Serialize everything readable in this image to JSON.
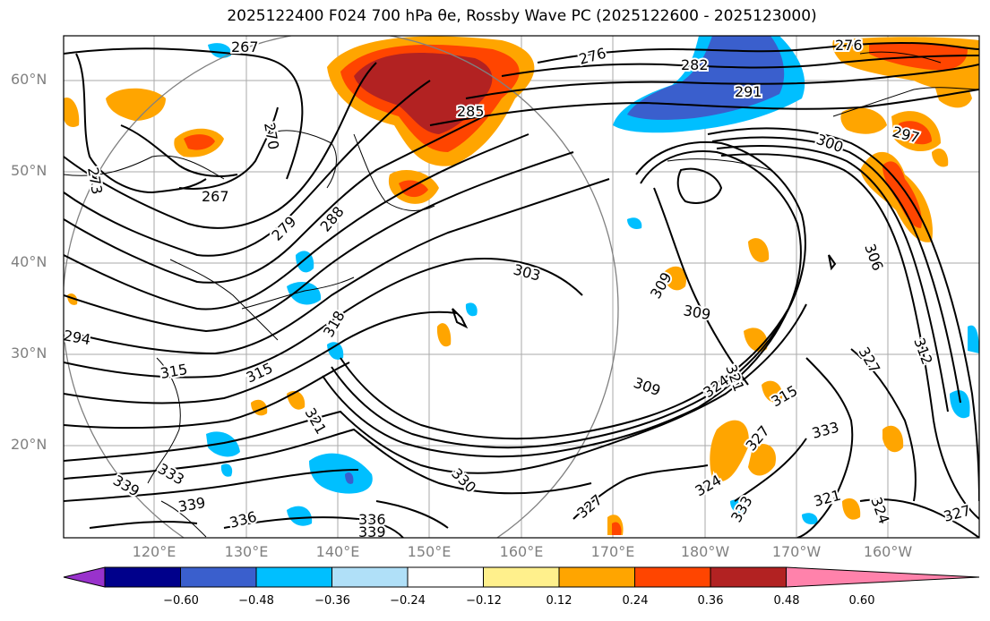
{
  "title": "2025122400 F024 700 hPa θe, Rossby Wave PC (2025122600 - 2025123000)",
  "lat_ticks": [
    "60°N",
    "50°N",
    "40°N",
    "30°N",
    "20°N"
  ],
  "lon_ticks": [
    "120°E",
    "130°E",
    "140°E",
    "150°E",
    "160°E",
    "170°E",
    "180°W",
    "170°W",
    "160°W"
  ],
  "colorbar": {
    "ticks": [
      "−0.60",
      "−0.48",
      "−0.36",
      "−0.24",
      "−0.12",
      "0.12",
      "0.24",
      "0.36",
      "0.48",
      "0.60"
    ],
    "colors": [
      "#9932cc",
      "#00008b",
      "#3a5fcd",
      "#00bfff",
      "#b0e0f8",
      "#ffffff",
      "#fff08c",
      "#ffa500",
      "#ff4500",
      "#b22222",
      "#ff82ab"
    ]
  },
  "contour_labels": [
    {
      "text": "267"
    },
    {
      "text": "276"
    },
    {
      "text": "282"
    },
    {
      "text": "276"
    },
    {
      "text": "291"
    },
    {
      "text": "285"
    },
    {
      "text": "270"
    },
    {
      "text": "300"
    },
    {
      "text": "297"
    },
    {
      "text": "273"
    },
    {
      "text": "267"
    },
    {
      "text": "279"
    },
    {
      "text": "288"
    },
    {
      "text": "303"
    },
    {
      "text": "306"
    },
    {
      "text": "309"
    },
    {
      "text": "309"
    },
    {
      "text": "294"
    },
    {
      "text": "315"
    },
    {
      "text": "315"
    },
    {
      "text": "318"
    },
    {
      "text": "312"
    },
    {
      "text": "327"
    },
    {
      "text": "309"
    },
    {
      "text": "324"
    },
    {
      "text": "321"
    },
    {
      "text": "315"
    },
    {
      "text": "333"
    },
    {
      "text": "327"
    },
    {
      "text": "330"
    },
    {
      "text": "333"
    },
    {
      "text": "339"
    },
    {
      "text": "339"
    },
    {
      "text": "336"
    },
    {
      "text": "336"
    },
    {
      "text": "339"
    },
    {
      "text": "327"
    },
    {
      "text": "324"
    },
    {
      "text": "333"
    },
    {
      "text": "321"
    },
    {
      "text": "324"
    },
    {
      "text": "327"
    },
    {
      "text": "321"
    }
  ]
}
